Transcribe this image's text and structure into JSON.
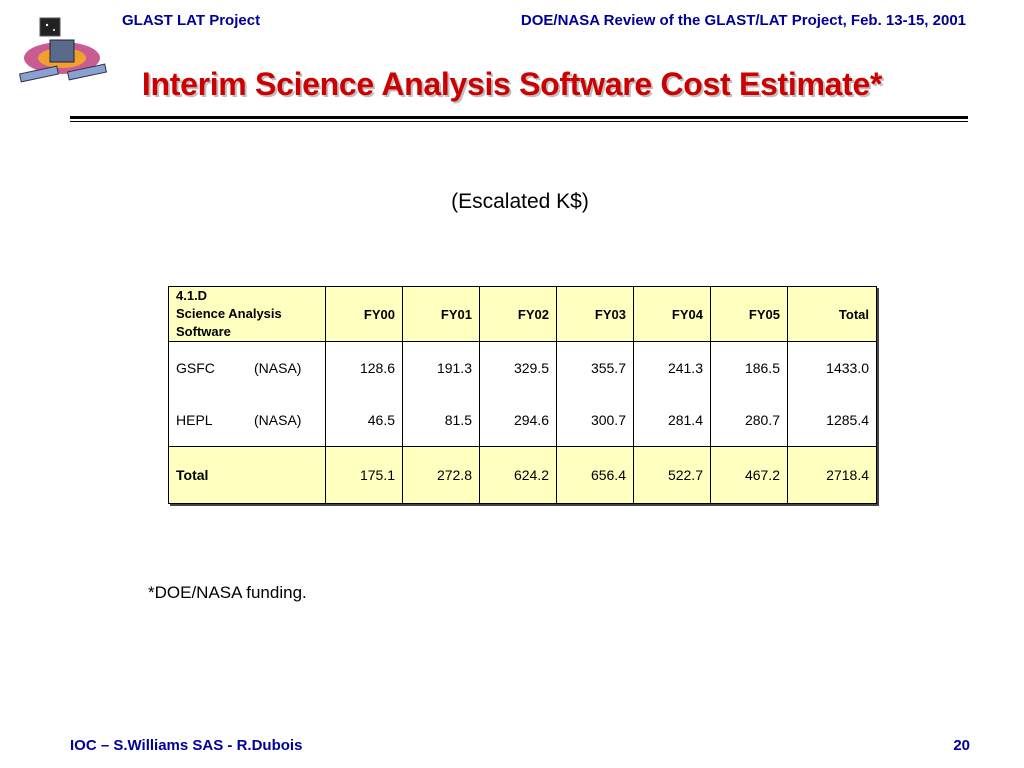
{
  "header": {
    "project": "GLAST LAT Project",
    "review": "DOE/NASA Review of the GLAST/LAT Project, Feb. 13-15, 2001"
  },
  "title": "Interim Science Analysis Software Cost Estimate*",
  "subtitle": "(Escalated K$)",
  "table": {
    "label_lines": [
      "4.1.D",
      "Science Analysis",
      "Software"
    ],
    "columns": [
      "FY00",
      "FY01",
      "FY02",
      "FY03",
      "FY04",
      "FY05",
      "Total"
    ],
    "rows": [
      {
        "org": "GSFC",
        "agency": "(NASA)",
        "values": [
          "128.6",
          "191.3",
          "329.5",
          "355.7",
          "241.3",
          "186.5",
          "1433.0"
        ]
      },
      {
        "org": "HEPL",
        "agency": "(NASA)",
        "values": [
          "46.5",
          "81.5",
          "294.6",
          "300.7",
          "281.4",
          "280.7",
          "1285.4"
        ]
      }
    ],
    "total": {
      "label": "Total",
      "values": [
        "175.1",
        "272.8",
        "624.2",
        "656.4",
        "522.7",
        "467.2",
        "2718.4"
      ]
    }
  },
  "note": "*DOE/NASA funding.",
  "footer": {
    "left": "IOC – S.Williams SAS - R.Dubois",
    "page": "20"
  },
  "colors": {
    "title": "#cc0000",
    "header_text": "#000099",
    "table_highlight": "#ffffc0"
  }
}
